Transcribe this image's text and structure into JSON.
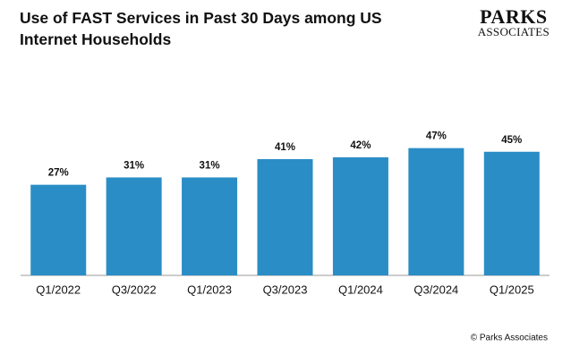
{
  "chart_data": {
    "type": "bar",
    "title": "Use of FAST Services in Past 30 Days among US Internet Households",
    "logo": [
      "PARKS",
      "ASSOCIATES"
    ],
    "source": "© Parks Associates",
    "categories": [
      "Q1/2022",
      "Q3/2022",
      "Q1/2023",
      "Q3/2023",
      "Q1/2024",
      "Q3/2024",
      "Q1/2025"
    ],
    "values": [
      27,
      31,
      31,
      41,
      42,
      47,
      45
    ],
    "value_labels": [
      "27%",
      "31%",
      "31%",
      "41%",
      "42%",
      "47%",
      "45%"
    ],
    "color": "#2a8dc6"
  }
}
